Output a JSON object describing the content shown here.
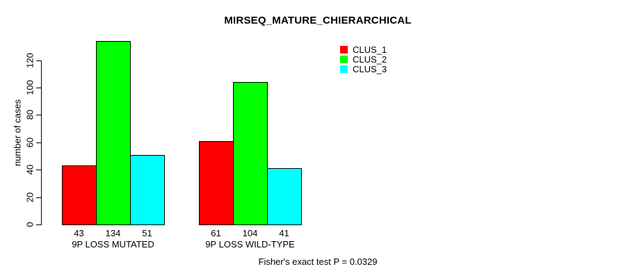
{
  "chart_data": {
    "type": "bar",
    "title": "MIRSEQ_MATURE_CHIERARCHICAL",
    "ylabel": "number of cases",
    "xlabel": "",
    "categories": [
      "9P LOSS MUTATED",
      "9P LOSS WILD-TYPE"
    ],
    "series": [
      {
        "name": "CLUS_1",
        "color": "#ff0000",
        "values": [
          43,
          61
        ]
      },
      {
        "name": "CLUS_2",
        "color": "#00ff00",
        "values": [
          134,
          104
        ]
      },
      {
        "name": "CLUS_3",
        "color": "#00ffff",
        "values": [
          51,
          41
        ]
      }
    ],
    "yticks": [
      0,
      20,
      40,
      60,
      80,
      100,
      120
    ],
    "ylim": [
      0,
      140
    ],
    "grid": false,
    "legend_position": "top-right",
    "bar_value_labels": true,
    "annotation": "Fisher's exact test P = 0.0329",
    "colors": {
      "axis": "#000000",
      "bar_border": "#000000",
      "background": "#ffffff",
      "text": "#000000"
    }
  }
}
